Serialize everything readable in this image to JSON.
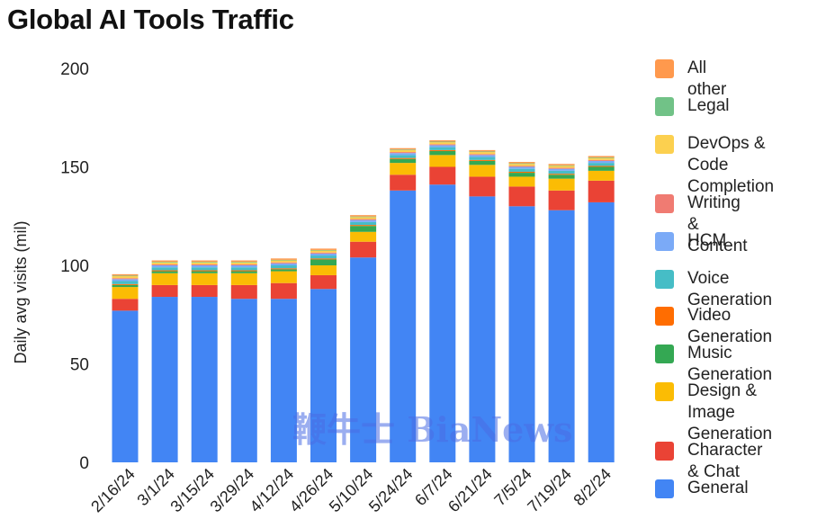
{
  "chart_data": {
    "type": "bar",
    "stacked": true,
    "title": "Global AI Tools Traffic",
    "xlabel": "",
    "ylabel": "Daily avg visits (mil)",
    "ylim": [
      0,
      200
    ],
    "yticks": [
      0,
      50,
      100,
      150,
      200
    ],
    "grid": false,
    "legend_position": "right",
    "categories": [
      "2/16/24",
      "3/1/24",
      "3/15/24",
      "3/29/24",
      "4/12/24",
      "4/26/24",
      "5/10/24",
      "5/24/24",
      "6/7/24",
      "6/21/24",
      "7/5/24",
      "7/19/24",
      "8/2/24"
    ],
    "series": [
      {
        "name": "General",
        "color": "#4285f4",
        "values": [
          77,
          84,
          84,
          83,
          83,
          88,
          104,
          138,
          141,
          135,
          130,
          128,
          132
        ]
      },
      {
        "name": "Character & Chat",
        "color": "#ea4335",
        "values": [
          6,
          6,
          6,
          7,
          8,
          7,
          8,
          8,
          9,
          10,
          10,
          10,
          11
        ]
      },
      {
        "name": "Design & Image Generation",
        "color": "#fbbc04",
        "values": [
          6,
          6,
          6,
          6,
          6,
          5,
          5,
          6,
          6,
          6,
          5,
          6,
          5
        ]
      },
      {
        "name": "Music Generation",
        "color": "#34a853",
        "values": [
          1,
          1,
          1,
          1,
          1,
          3,
          3,
          2,
          2,
          2,
          2,
          2,
          2
        ]
      },
      {
        "name": "Video Generation",
        "color": "#ff6d01",
        "values": [
          0.5,
          0.5,
          0.5,
          0.5,
          0.5,
          0.5,
          0.5,
          0.5,
          0.5,
          0.5,
          0.5,
          0.5,
          0.5
        ]
      },
      {
        "name": "Voice Generation",
        "color": "#46bdc6",
        "values": [
          1.5,
          1.5,
          1.5,
          1.5,
          1.5,
          1.5,
          1.5,
          1.5,
          1.5,
          1.5,
          1.5,
          1.5,
          1.5
        ]
      },
      {
        "name": "HCM",
        "color": "#7baaf7",
        "values": [
          1,
          1,
          1,
          1,
          1,
          1,
          1,
          1,
          1,
          1,
          1,
          1,
          1
        ]
      },
      {
        "name": "Writing & Content",
        "color": "#f07b72",
        "values": [
          0.5,
          0.5,
          0.5,
          0.5,
          0.5,
          0.5,
          0.5,
          0.5,
          0.5,
          0.5,
          0.5,
          0.5,
          0.5
        ]
      },
      {
        "name": "DevOps & Code Completion",
        "color": "#fcd04f",
        "values": [
          1,
          1,
          1,
          1,
          1,
          1,
          1,
          1,
          1,
          1,
          1,
          1,
          1
        ]
      },
      {
        "name": "Legal",
        "color": "#71c287",
        "values": [
          0.3,
          0.3,
          0.3,
          0.3,
          0.3,
          0.3,
          0.3,
          0.3,
          0.3,
          0.3,
          0.3,
          0.3,
          0.3
        ]
      },
      {
        "name": "All other",
        "color": "#ff994d",
        "values": [
          0.7,
          0.7,
          0.7,
          0.7,
          0.7,
          0.7,
          0.7,
          0.7,
          0.7,
          0.7,
          0.7,
          0.7,
          0.7
        ]
      }
    ]
  },
  "legend": {
    "items": [
      {
        "label": "All other",
        "color": "#ff994d"
      },
      {
        "label": "Legal",
        "color": "#71c287"
      },
      {
        "label": "DevOps & Code\nCompletion",
        "color": "#fcd04f"
      },
      {
        "label": "Writing & Content",
        "color": "#f07b72"
      },
      {
        "label": "HCM",
        "color": "#7baaf7"
      },
      {
        "label": "Voice Generation",
        "color": "#46bdc6"
      },
      {
        "label": "Video Generation",
        "color": "#ff6d01"
      },
      {
        "label": "Music Generation",
        "color": "#34a853"
      },
      {
        "label": "Design & Image\nGeneration",
        "color": "#fbbc04"
      },
      {
        "label": "Character & Chat",
        "color": "#ea4335"
      },
      {
        "label": "General",
        "color": "#4285f4"
      }
    ]
  },
  "watermark": {
    "text": "鞭牛士 BiaNews"
  }
}
